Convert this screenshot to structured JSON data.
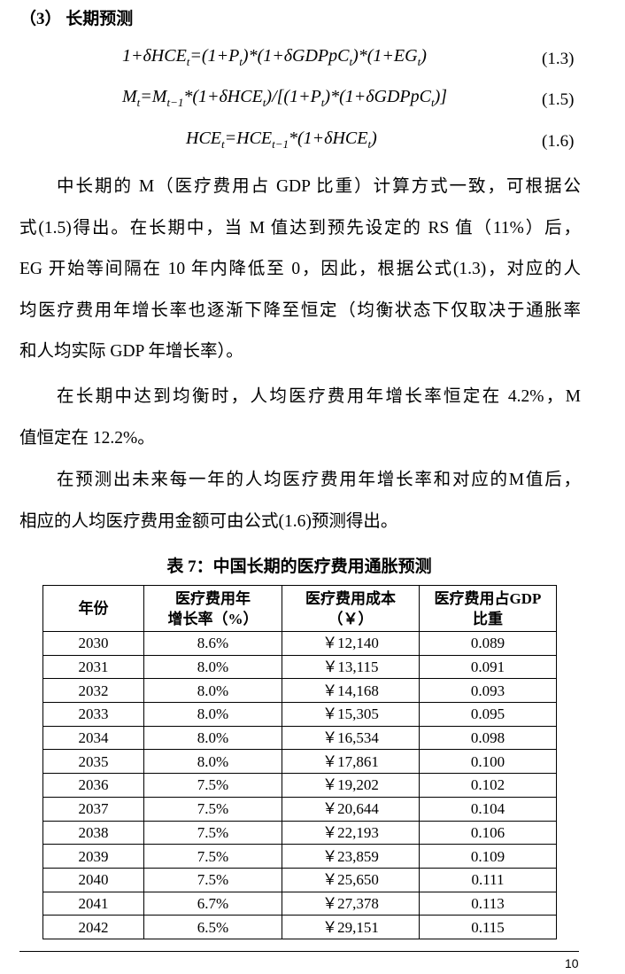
{
  "heading": "（3） 长期预测",
  "formulas": [
    {
      "number": "(1.3)",
      "segments": [
        [
          "1+δHCE",
          ""
        ],
        [
          "",
          "t"
        ],
        [
          "=(1+P",
          ""
        ],
        [
          "",
          "t"
        ],
        [
          ")*(1+δGDPpC",
          ""
        ],
        [
          "",
          "t"
        ],
        [
          ")*(1+EG",
          ""
        ],
        [
          "",
          "t"
        ],
        [
          ")",
          ""
        ]
      ]
    },
    {
      "number": "(1.5)",
      "segments": [
        [
          "M",
          ""
        ],
        [
          "",
          "t"
        ],
        [
          "=M",
          ""
        ],
        [
          "",
          "t−1"
        ],
        [
          "*(1+δHCE",
          ""
        ],
        [
          "",
          "t"
        ],
        [
          ")/[(1+P",
          ""
        ],
        [
          "",
          "t"
        ],
        [
          ")*(1+δGDPpC",
          ""
        ],
        [
          "",
          "t"
        ],
        [
          ")]",
          ""
        ]
      ]
    },
    {
      "number": "(1.6)",
      "segments": [
        [
          "HCE",
          ""
        ],
        [
          "",
          "t"
        ],
        [
          "=HCE",
          ""
        ],
        [
          "",
          "t−1"
        ],
        [
          "*(1+δHCE",
          ""
        ],
        [
          "",
          "t"
        ],
        [
          ")",
          ""
        ]
      ]
    }
  ],
  "paragraphs": [
    {
      "lines": [
        "中长期的 M（医疗费用占 GDP 比重）计算方式一致，可根据公",
        "式(1.5)得出。在长期中，当 M 值达到预先设定的 RS 值（11%）后，",
        "EG 开始等间隔在 10 年内降低至 0，因此，根据公式(1.3)，对应的人",
        "均医疗费用年增长率也逐渐下降至恒定（均衡状态下仅取决于通胀率",
        "和人均实际 GDP 年增长率）。"
      ]
    },
    {
      "lines": [
        "在长期中达到均衡时，人均医疗费用年增长率恒定在 4.2%，M",
        "值恒定在 12.2%。"
      ]
    },
    {
      "lines": [
        "在预测出未来每一年的人均医疗费用年增长率和对应的M值后，",
        "相应的人均医疗费用金额可由公式(1.6)预测得出。"
      ]
    }
  ],
  "table": {
    "caption": "表 7：中国长期的医疗费用通胀预测",
    "headers": [
      [
        "年份"
      ],
      [
        "医疗费用年",
        "增长率（%）"
      ],
      [
        "医疗费用成本",
        "（￥）"
      ],
      [
        "医疗费用占GDP",
        "比重"
      ]
    ],
    "rows": [
      [
        "2030",
        "8.6%",
        "￥12,140",
        "0.089"
      ],
      [
        "2031",
        "8.0%",
        "￥13,115",
        "0.091"
      ],
      [
        "2032",
        "8.0%",
        "￥14,168",
        "0.093"
      ],
      [
        "2033",
        "8.0%",
        "￥15,305",
        "0.095"
      ],
      [
        "2034",
        "8.0%",
        "￥16,534",
        "0.098"
      ],
      [
        "2035",
        "8.0%",
        "￥17,861",
        "0.100"
      ],
      [
        "2036",
        "7.5%",
        "￥19,202",
        "0.102"
      ],
      [
        "2037",
        "7.5%",
        "￥20,644",
        "0.104"
      ],
      [
        "2038",
        "7.5%",
        "￥22,193",
        "0.106"
      ],
      [
        "2039",
        "7.5%",
        "￥23,859",
        "0.109"
      ],
      [
        "2040",
        "7.5%",
        "￥25,650",
        "0.111"
      ],
      [
        "2041",
        "6.7%",
        "￥27,378",
        "0.113"
      ],
      [
        "2042",
        "6.5%",
        "￥29,151",
        "0.115"
      ]
    ]
  },
  "page_number": "10"
}
